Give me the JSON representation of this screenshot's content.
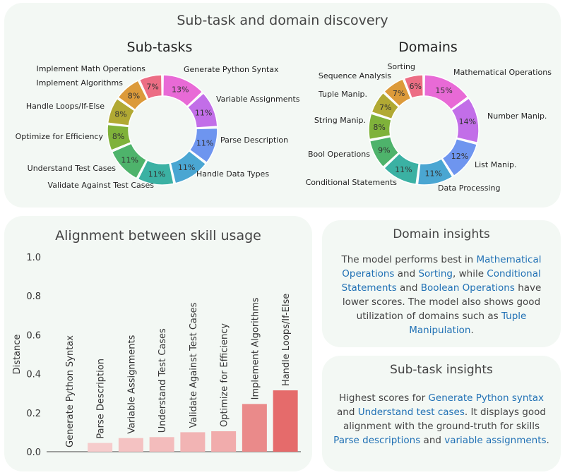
{
  "header": {
    "title": "Sub-task and domain discovery"
  },
  "chart_data": [
    {
      "type": "pie",
      "title": "Sub-tasks",
      "slices": [
        {
          "label": "Generate Python Syntax",
          "value": 13,
          "pct": "13%",
          "color": "#e86ad6"
        },
        {
          "label": "Variable Assignments",
          "value": 11,
          "pct": "11%",
          "color": "#c26ee8"
        },
        {
          "label": "Parse Description",
          "value": 11,
          "pct": "11%",
          "color": "#6e95ef"
        },
        {
          "label": "Handle Data Types",
          "value": 11,
          "pct": "11%",
          "color": "#4aa6d2"
        },
        {
          "label": "Validate Against Test Cases",
          "value": 11,
          "pct": "11%",
          "color": "#3bb1a3"
        },
        {
          "label": "Understand Test Cases",
          "value": 11,
          "pct": "11%",
          "color": "#4eb36b"
        },
        {
          "label": "Optimize for Efficiency",
          "value": 8,
          "pct": "8%",
          "color": "#7fb23a"
        },
        {
          "label": "Handle Loops/If-Else",
          "value": 8,
          "pct": "8%",
          "color": "#b1a933"
        },
        {
          "label": "Implement Algorithms",
          "value": 8,
          "pct": "8%",
          "color": "#dc9a3a"
        },
        {
          "label": "Implement Math Operations",
          "value": 7,
          "pct": "7%",
          "color": "#ec6d84"
        }
      ]
    },
    {
      "type": "pie",
      "title": "Domains",
      "slices": [
        {
          "label": "Mathematical Operations",
          "value": 15,
          "pct": "15%",
          "color": "#e86ad6"
        },
        {
          "label": "Number Manip.",
          "value": 14,
          "pct": "14%",
          "color": "#c26ee8"
        },
        {
          "label": "List Manip.",
          "value": 12,
          "pct": "12%",
          "color": "#6e95ef"
        },
        {
          "label": "Data Processing",
          "value": 11,
          "pct": "11%",
          "color": "#4aa6d2"
        },
        {
          "label": "Conditional Statements",
          "value": 11,
          "pct": "11%",
          "color": "#3bb1a3"
        },
        {
          "label": "Bool Operations",
          "value": 9,
          "pct": "9%",
          "color": "#4eb36b"
        },
        {
          "label": "String Manip.",
          "value": 8,
          "pct": "8%",
          "color": "#7fb23a"
        },
        {
          "label": "Tuple Manip.",
          "value": 7,
          "pct": "7%",
          "color": "#b1a933"
        },
        {
          "label": "Sequence Analysis",
          "value": 7,
          "pct": "7%",
          "color": "#dc9a3a"
        },
        {
          "label": "Sorting",
          "value": 6,
          "pct": "6%",
          "color": "#ec6d84"
        }
      ]
    },
    {
      "type": "bar",
      "title": "Alignment between skill usage",
      "ylabel": "Distance",
      "ylim": [
        0,
        1.0
      ],
      "yticks": [
        "0.0",
        "0.2",
        "0.4",
        "0.6",
        "0.8",
        "1.0"
      ],
      "categories": [
        "Generate Python Syntax",
        "Parse Description",
        "Variable Assignments",
        "Understand Test Cases",
        "Validate Against Test Cases",
        "Optimize for Efficiency",
        "Implement Algorithms",
        "Handle Loops/If-Else"
      ],
      "values": [
        0.0,
        0.045,
        0.07,
        0.075,
        0.1,
        0.105,
        0.245,
        0.315
      ],
      "colors": [
        "#f7d5d5",
        "#f6cccc",
        "#f4c2c2",
        "#f3bcbc",
        "#f2b4b4",
        "#f1acac",
        "#ea8a8a",
        "#e56b6b"
      ]
    }
  ],
  "domain_insights": {
    "title": "Domain insights",
    "segments": [
      {
        "text": "The model performs best in ",
        "hl": false
      },
      {
        "text": "Mathematical Operations",
        "hl": true
      },
      {
        "text": " and ",
        "hl": false
      },
      {
        "text": "Sorting",
        "hl": true
      },
      {
        "text": ", while ",
        "hl": false
      },
      {
        "text": "Conditional Statements",
        "hl": true
      },
      {
        "text": " and ",
        "hl": false
      },
      {
        "text": "Boolean Operations",
        "hl": true
      },
      {
        "text": " have lower scores. The model also shows good utilization of domains such as ",
        "hl": false
      },
      {
        "text": "Tuple Manipulation",
        "hl": true
      },
      {
        "text": ".",
        "hl": false
      }
    ]
  },
  "subtask_insights": {
    "title": "Sub-task insights",
    "segments": [
      {
        "text": "Highest scores for ",
        "hl": false
      },
      {
        "text": "Generate Python syntax",
        "hl": true
      },
      {
        "text": " and ",
        "hl": false
      },
      {
        "text": "Understand test cases",
        "hl": true
      },
      {
        "text": ". It displays good alignment with the ground-truth for skills ",
        "hl": false
      },
      {
        "text": "Parse descriptions",
        "hl": true
      },
      {
        "text": " and ",
        "hl": false
      },
      {
        "text": "variable assignments",
        "hl": true
      },
      {
        "text": ".",
        "hl": false
      }
    ]
  }
}
